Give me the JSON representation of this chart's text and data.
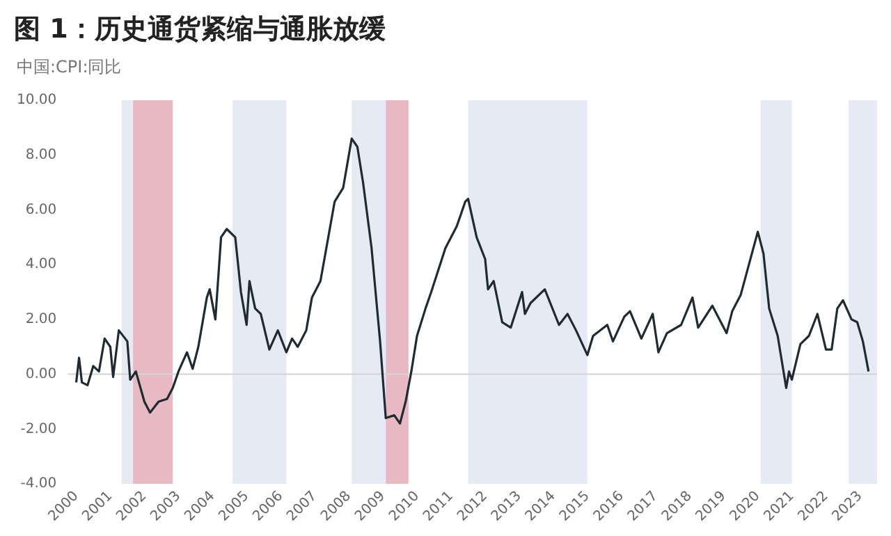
{
  "chart_data": {
    "type": "line",
    "title": "图 1：历史通货紧缩与通胀放缓",
    "subtitle": "中国:CPI:同比",
    "x": [
      "2000-01",
      "2000-02",
      "2000-03",
      "2000-05",
      "2000-07",
      "2000-09",
      "2000-11",
      "2001-01",
      "2001-02",
      "2001-04",
      "2001-07",
      "2001-08",
      "2001-10",
      "2002-01",
      "2002-03",
      "2002-06",
      "2002-09",
      "2002-11",
      "2003-01",
      "2003-04",
      "2003-06",
      "2003-08",
      "2003-11",
      "2003-12",
      "2004-02",
      "2004-04",
      "2004-06",
      "2004-09",
      "2004-11",
      "2005-01",
      "2005-02",
      "2005-04",
      "2005-06",
      "2005-09",
      "2005-12",
      "2006-03",
      "2006-05",
      "2006-07",
      "2006-10",
      "2006-12",
      "2007-03",
      "2007-08",
      "2007-11",
      "2008-02",
      "2008-04",
      "2008-06",
      "2008-09",
      "2008-12",
      "2009-02",
      "2009-05",
      "2009-07",
      "2009-09",
      "2009-11",
      "2010-01",
      "2010-04",
      "2010-06",
      "2010-11",
      "2011-03",
      "2011-06",
      "2011-07",
      "2011-10",
      "2012-01",
      "2012-02",
      "2012-04",
      "2012-07",
      "2012-10",
      "2013-02",
      "2013-03",
      "2013-05",
      "2013-10",
      "2014-03",
      "2014-06",
      "2014-09",
      "2015-01",
      "2015-03",
      "2015-08",
      "2015-10",
      "2016-02",
      "2016-04",
      "2016-08",
      "2016-12",
      "2017-02",
      "2017-05",
      "2017-10",
      "2018-02",
      "2018-04",
      "2018-09",
      "2019-02",
      "2019-04",
      "2019-07",
      "2020-01",
      "2020-03",
      "2020-05",
      "2020-08",
      "2020-11",
      "2020-12",
      "2021-01",
      "2021-04",
      "2021-07",
      "2021-10",
      "2022-01",
      "2022-03",
      "2022-05",
      "2022-07",
      "2022-10",
      "2022-12",
      "2023-02",
      "2023-04"
    ],
    "series": [
      {
        "color": "#1f2b33",
        "values": [
          -0.3,
          0.6,
          -0.3,
          -0.4,
          0.3,
          0.1,
          1.3,
          1.0,
          -0.1,
          1.6,
          1.2,
          -0.2,
          0.1,
          -1.0,
          -1.4,
          -1.0,
          -0.9,
          -0.5,
          0.1,
          0.8,
          0.2,
          1.0,
          2.8,
          3.1,
          2.0,
          5.0,
          5.3,
          5.0,
          3.0,
          1.8,
          3.4,
          2.4,
          2.2,
          0.9,
          1.6,
          0.8,
          1.3,
          1.0,
          1.6,
          2.8,
          3.4,
          6.3,
          6.8,
          8.6,
          8.3,
          7.0,
          4.6,
          1.2,
          -1.6,
          -1.5,
          -1.8,
          -1.0,
          0.1,
          1.4,
          2.4,
          3.0,
          4.6,
          5.4,
          6.3,
          6.4,
          5.0,
          4.2,
          3.1,
          3.4,
          1.9,
          1.7,
          3.0,
          2.2,
          2.6,
          3.1,
          1.8,
          2.2,
          1.6,
          0.7,
          1.4,
          1.8,
          1.2,
          2.1,
          2.3,
          1.3,
          2.2,
          0.8,
          1.5,
          1.8,
          2.8,
          1.7,
          2.5,
          1.5,
          2.3,
          2.9,
          5.2,
          4.4,
          2.4,
          1.4,
          -0.5,
          0.1,
          -0.2,
          1.1,
          1.4,
          2.2,
          0.9,
          0.9,
          2.4,
          2.7,
          2.0,
          1.9,
          1.2,
          0.1
        ]
      }
    ],
    "xlim": [
      "1999-10",
      "2023-07"
    ],
    "xticks": [
      "2000",
      "2001",
      "2002",
      "2003",
      "2004",
      "2005",
      "2006",
      "2007",
      "2008",
      "2009",
      "2010",
      "2011",
      "2012",
      "2013",
      "2014",
      "2015",
      "2016",
      "2017",
      "2018",
      "2019",
      "2020",
      "2021",
      "2022",
      "2023"
    ],
    "ylim": [
      -4,
      10
    ],
    "yticks": [
      {
        "value": -4,
        "label": "-4.00"
      },
      {
        "value": -2,
        "label": "-2.00"
      },
      {
        "value": 0,
        "label": "0.00"
      },
      {
        "value": 2,
        "label": "2.00"
      },
      {
        "value": 4,
        "label": "4.00"
      },
      {
        "value": 6,
        "label": "6.00"
      },
      {
        "value": 8,
        "label": "8.00"
      },
      {
        "value": 10,
        "label": "10.00"
      }
    ],
    "bands": [
      {
        "axis": "x",
        "from": "2001-05",
        "to": "2001-09",
        "label": null,
        "color": "#e6eaf5"
      },
      {
        "axis": "x",
        "from": "2001-09",
        "to": "2002-11",
        "label": null,
        "color": "#e7b9c3"
      },
      {
        "axis": "x",
        "from": "2004-08",
        "to": "2006-03",
        "label": null,
        "color": "#e6eaf5"
      },
      {
        "axis": "x",
        "from": "2008-02",
        "to": "2009-02",
        "label": null,
        "color": "#e6eaf5"
      },
      {
        "axis": "x",
        "from": "2009-02",
        "to": "2009-10",
        "label": null,
        "color": "#e7b9c3"
      },
      {
        "axis": "x",
        "from": "2011-07",
        "to": "2015-01",
        "label": null,
        "color": "#e6eaf5"
      },
      {
        "axis": "x",
        "from": "2020-02",
        "to": "2021-01",
        "label": null,
        "color": "#e6eaf5"
      },
      {
        "axis": "x",
        "from": "2022-09",
        "to": "2023-07",
        "label": null,
        "color": "#e6eaf5"
      }
    ],
    "ref_lines": [
      {
        "axis": "y",
        "value": 0,
        "label": null,
        "color": "#d4d4d4"
      }
    ],
    "grid": false,
    "legend": false,
    "marker": "none",
    "line_style": "solid"
  }
}
